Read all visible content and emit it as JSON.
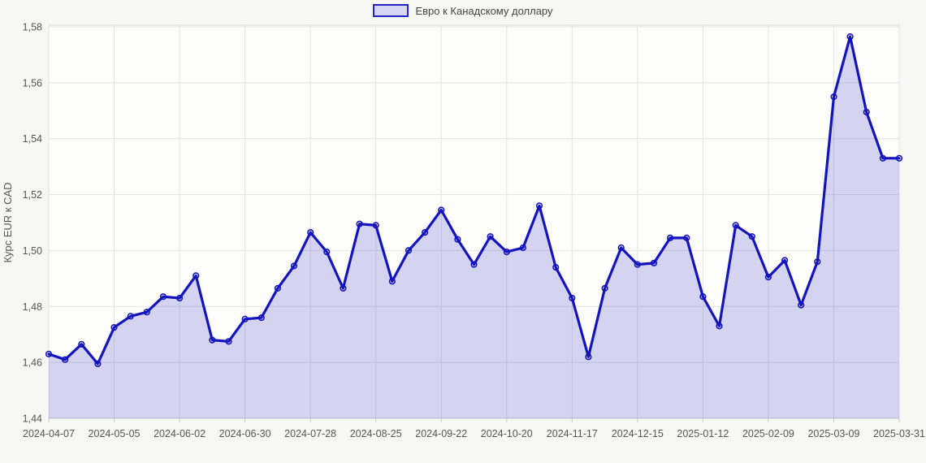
{
  "page": {
    "background": "#f7f7f4",
    "plot_background": "#fdfdfb"
  },
  "legend": {
    "label": "Евро к Канадскому доллару",
    "swatch_fill": "#d6d6f2",
    "swatch_border": "#2323c8",
    "position": "top-center"
  },
  "axes": {
    "y_title": "Курс EUR к CAD"
  },
  "chart_data": {
    "type": "area",
    "title": "",
    "xlabel": "",
    "ylabel": "Курс EUR к CAD",
    "series_name": "Евро к Канадскому доллару",
    "legend_position": "top",
    "grid": true,
    "ylim": [
      1.44,
      1.58
    ],
    "y_ticks": [
      1.44,
      1.46,
      1.48,
      1.5,
      1.52,
      1.54,
      1.56,
      1.58
    ],
    "y_tick_labels": [
      "1,44",
      "1,46",
      "1,48",
      "1,50",
      "1,52",
      "1,54",
      "1,56",
      "1,58"
    ],
    "x": [
      "2024-04-07",
      "2024-04-14",
      "2024-04-21",
      "2024-04-28",
      "2024-05-05",
      "2024-05-12",
      "2024-05-19",
      "2024-05-26",
      "2024-06-02",
      "2024-06-09",
      "2024-06-16",
      "2024-06-23",
      "2024-06-30",
      "2024-07-07",
      "2024-07-14",
      "2024-07-21",
      "2024-07-28",
      "2024-08-04",
      "2024-08-11",
      "2024-08-18",
      "2024-08-25",
      "2024-09-01",
      "2024-09-08",
      "2024-09-15",
      "2024-09-22",
      "2024-09-29",
      "2024-10-06",
      "2024-10-13",
      "2024-10-20",
      "2024-10-27",
      "2024-11-03",
      "2024-11-10",
      "2024-11-17",
      "2024-11-24",
      "2024-12-01",
      "2024-12-08",
      "2024-12-15",
      "2024-12-22",
      "2024-12-29",
      "2025-01-05",
      "2025-01-12",
      "2025-01-19",
      "2025-01-26",
      "2025-02-02",
      "2025-02-09",
      "2025-02-16",
      "2025-02-23",
      "2025-03-02",
      "2025-03-09",
      "2025-03-16",
      "2025-03-23",
      "2025-03-30",
      "2025-03-31"
    ],
    "values": [
      1.463,
      1.461,
      1.4665,
      1.4595,
      1.4725,
      1.4765,
      1.478,
      1.4835,
      1.483,
      1.491,
      1.468,
      1.4675,
      1.4755,
      1.476,
      1.4865,
      1.4945,
      1.5065,
      1.4995,
      1.4865,
      1.5095,
      1.509,
      1.489,
      1.5,
      1.5065,
      1.5145,
      1.504,
      1.495,
      1.505,
      1.4995,
      1.501,
      1.516,
      1.494,
      1.483,
      1.462,
      1.4865,
      1.501,
      1.495,
      1.4955,
      1.5045,
      1.5045,
      1.4835,
      1.473,
      1.509,
      1.505,
      1.4905,
      1.4965,
      1.4805,
      1.496,
      1.555,
      1.5765,
      1.5495,
      1.533,
      1.533
    ],
    "x_tick_indices": [
      0,
      4,
      8,
      12,
      16,
      20,
      24,
      28,
      32,
      36,
      40,
      44,
      48,
      52
    ],
    "x_tick_labels": [
      "2024-04-07",
      "2024-05-05",
      "2024-06-02",
      "2024-06-30",
      "2024-07-28",
      "2024-08-25",
      "2024-09-22",
      "2024-10-20",
      "2024-11-17",
      "2024-12-15",
      "2025-01-12",
      "2025-02-09",
      "2025-03-09",
      "2025-03-31"
    ],
    "colors": {
      "line": "#1414bf",
      "area_fill": "rgba(70,70,205,0.22)",
      "gridline": "#e2e2e2",
      "plot_border": "#d9d9d9",
      "axis_text": "#555555"
    }
  }
}
